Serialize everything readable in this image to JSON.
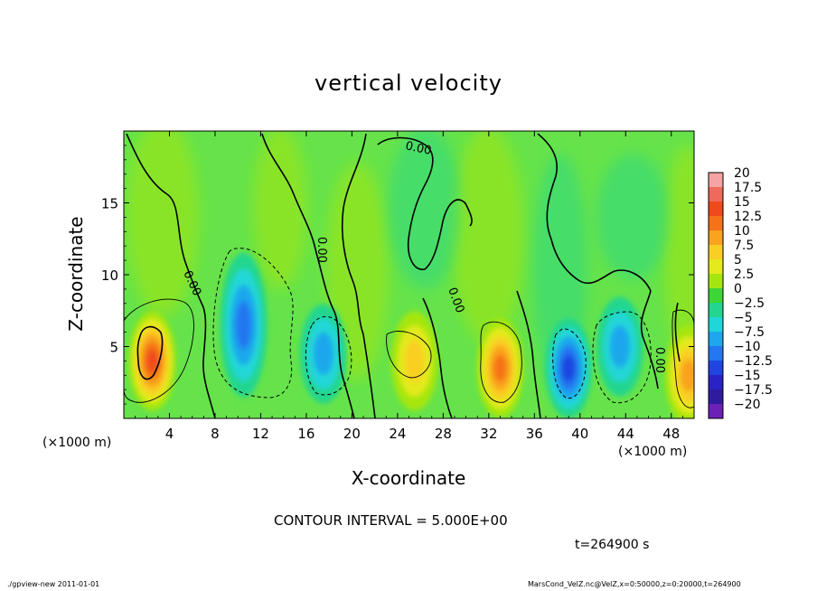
{
  "chart_data": {
    "type": "heatmap",
    "title": "vertical velocity",
    "xlabel": "X-coordinate",
    "ylabel": "Z-coordinate",
    "x_unit": "(×1000 m)",
    "x_unit_right": "(×1000 m)",
    "xlim": [
      0,
      50
    ],
    "ylim": [
      0,
      20
    ],
    "x_ticks": [
      4,
      8,
      12,
      16,
      20,
      24,
      28,
      32,
      36,
      40,
      44,
      48
    ],
    "y_ticks": [
      5,
      10,
      15
    ],
    "contour_interval_label": "CONTOUR INTERVAL = 5.000E+00",
    "contour_label": "0.00",
    "colorbar": {
      "levels": [
        "20",
        "17.5",
        "15",
        "12.5",
        "10",
        "7.5",
        "5",
        "2.5",
        "0",
        "−2.5",
        "−5",
        "−7.5",
        "−10",
        "−12.5",
        "−15",
        "−17.5",
        "−20"
      ],
      "colors": [
        "#f5a3a3",
        "#ef6a5a",
        "#f04a1c",
        "#f57218",
        "#f9a31e",
        "#f9cf23",
        "#e4ea1b",
        "#a6e60f",
        "#3cd636",
        "#22d68f",
        "#20d7d7",
        "#1ea7ec",
        "#2477f0",
        "#1f44e0",
        "#2a22c4",
        "#2f1ba0",
        "#6d20b8"
      ]
    },
    "features": [
      {
        "kind": "up",
        "x": 2.5,
        "z": 4,
        "peak": 15
      },
      {
        "kind": "down",
        "x": 10.5,
        "z": 6.5,
        "peak": -10
      },
      {
        "kind": "down",
        "x": 17.5,
        "z": 4.5,
        "peak": -7.5
      },
      {
        "kind": "up",
        "x": 25.5,
        "z": 4,
        "peak": 7.5
      },
      {
        "kind": "up",
        "x": 33,
        "z": 3.5,
        "peak": 12.5
      },
      {
        "kind": "down",
        "x": 39,
        "z": 3.5,
        "peak": -12.5
      },
      {
        "kind": "down",
        "x": 43.5,
        "z": 5,
        "peak": -7.5
      },
      {
        "kind": "up",
        "x": 49.5,
        "z": 3,
        "peak": 10
      }
    ]
  },
  "footer": {
    "time_label": "t=264900 s",
    "left_info": "./gpview-new  2011-01-01",
    "right_info": "MarsCond_VelZ.nc@VelZ,x=0:50000,z=0:20000,t=264900"
  }
}
